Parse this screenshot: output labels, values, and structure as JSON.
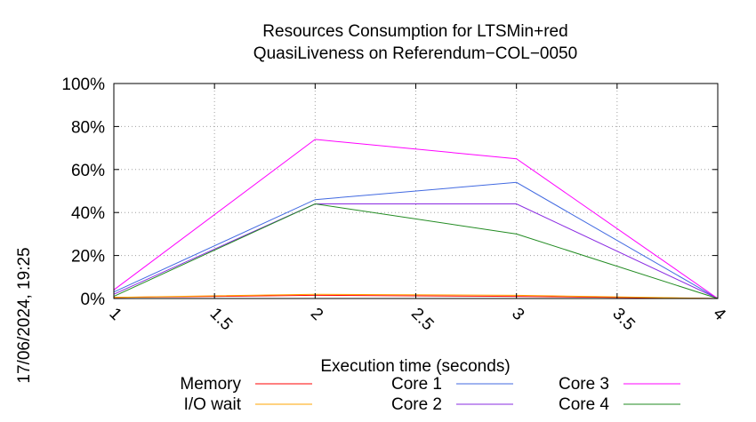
{
  "chart_data": {
    "type": "line",
    "title": [
      "Resources Consumption for LTSMin+red",
      "QuasiLiveness on Referendum−COL−0050"
    ],
    "xlabel": "Execution time (seconds)",
    "ylabel": "",
    "xlim": [
      1,
      4
    ],
    "ylim": [
      0,
      100
    ],
    "x_ticks": [
      "1",
      "1.5",
      "2",
      "2.5",
      "3",
      "3.5",
      "4"
    ],
    "y_ticks": [
      "0%",
      "20%",
      "40%",
      "60%",
      "80%",
      "100%"
    ],
    "grid": true,
    "legend_position": "bottom",
    "timestamp": "17/06/2024, 19:25",
    "x": [
      1,
      2,
      3,
      4
    ],
    "series": [
      {
        "name": "Memory",
        "color": "#ff0000",
        "values": [
          0.5,
          1.5,
          1.0,
          0
        ]
      },
      {
        "name": "I/O wait",
        "color": "#ffa500",
        "values": [
          0.5,
          2.0,
          1.5,
          0
        ]
      },
      {
        "name": "Core 1",
        "color": "#4169e1",
        "values": [
          3,
          46,
          54,
          0
        ]
      },
      {
        "name": "Core 2",
        "color": "#8a2be2",
        "values": [
          2,
          44,
          44,
          0
        ]
      },
      {
        "name": "Core 3",
        "color": "#ff00ff",
        "values": [
          4,
          74,
          65,
          0
        ]
      },
      {
        "name": "Core 4",
        "color": "#228b22",
        "values": [
          1,
          44,
          30,
          0
        ]
      }
    ]
  }
}
